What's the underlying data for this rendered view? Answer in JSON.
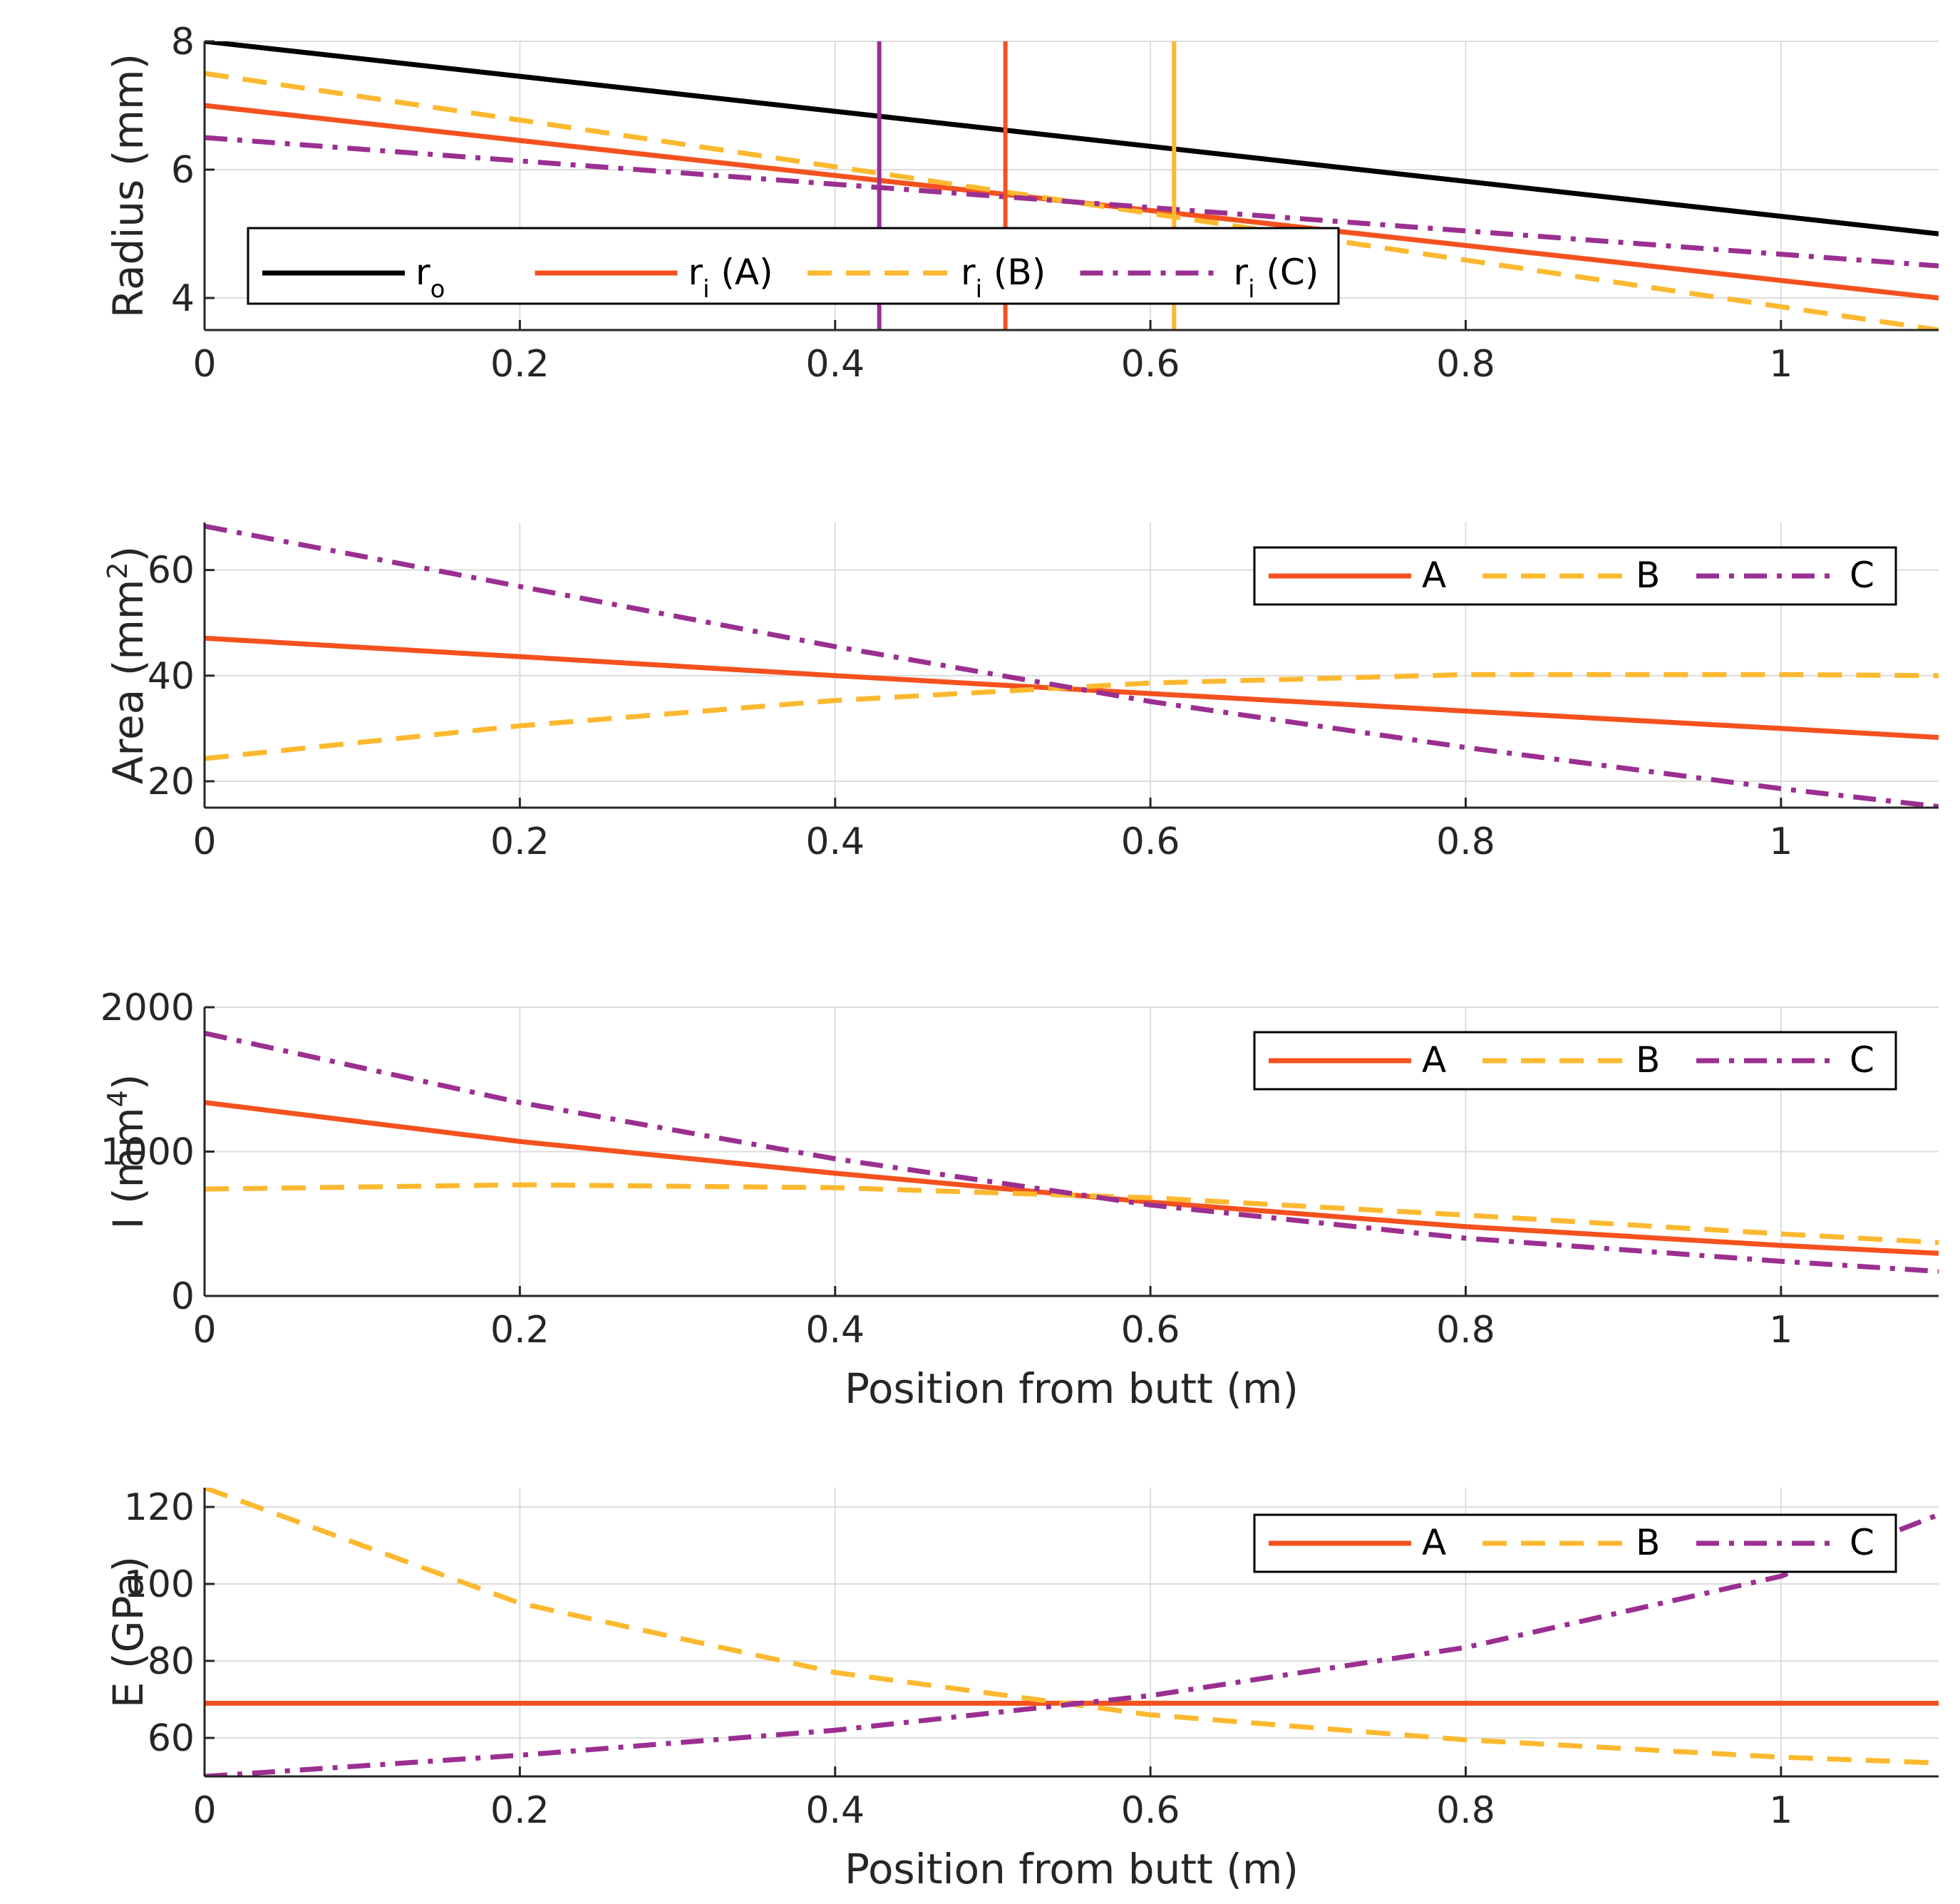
{
  "colors": {
    "ro": "#000000",
    "A": "#f4511e",
    "B": "#fcb92f",
    "C": "#9b2f91",
    "grid": "#dcdcdc",
    "axis": "#262626"
  },
  "chart_data": [
    {
      "type": "line",
      "id": "radius",
      "ylabel": "Radius (mm)",
      "xlabel": "",
      "xlim": [
        0,
        1.1
      ],
      "ylim": [
        3.5,
        8
      ],
      "xticks": [
        0,
        0.2,
        0.4,
        0.6,
        0.8,
        1
      ],
      "xtick_labels": [
        "0",
        "0.2",
        "0.4",
        "0.6",
        "0.8",
        "1"
      ],
      "yticks": [
        4,
        6,
        8
      ],
      "ytick_labels": [
        "4",
        "6",
        "8"
      ],
      "grid": true,
      "legend": {
        "placement": "lower-left",
        "entries": [
          {
            "base": "r",
            "sub": "o",
            "after": ""
          },
          {
            "base": "r",
            "sub": "i",
            "after": " (A)"
          },
          {
            "base": "r",
            "sub": "i",
            "after": " (B)"
          },
          {
            "base": "r",
            "sub": "i",
            "after": " (C)"
          }
        ]
      },
      "series": [
        {
          "name": "ro",
          "color_key": "ro",
          "style": "solid",
          "x": [
            0,
            1.1
          ],
          "y": [
            8.0,
            5.0
          ]
        },
        {
          "name": "ri (A)",
          "color_key": "A",
          "style": "solid",
          "x": [
            0,
            1.1
          ],
          "y": [
            7.0,
            4.0
          ]
        },
        {
          "name": "ri (B)",
          "color_key": "B",
          "style": "dash",
          "x": [
            0,
            1.1
          ],
          "y": [
            7.5,
            3.5
          ]
        },
        {
          "name": "ri (C)",
          "color_key": "C",
          "style": "dashdot",
          "x": [
            0,
            1.1
          ],
          "y": [
            6.5,
            4.5
          ]
        }
      ],
      "vlines": [
        {
          "x": 0.428,
          "color_key": "C"
        },
        {
          "x": 0.508,
          "color_key": "A"
        },
        {
          "x": 0.615,
          "color_key": "B"
        }
      ]
    },
    {
      "type": "line",
      "id": "area",
      "ylabel": "Area (mm",
      "ylabel_sup": "2",
      "ylabel_after": ")",
      "xlabel": "",
      "xlim": [
        0,
        1.1
      ],
      "ylim": [
        15,
        69
      ],
      "xticks": [
        0,
        0.2,
        0.4,
        0.6,
        0.8,
        1
      ],
      "xtick_labels": [
        "0",
        "0.2",
        "0.4",
        "0.6",
        "0.8",
        "1"
      ],
      "yticks": [
        20,
        40,
        60
      ],
      "ytick_labels": [
        "20",
        "40",
        "60"
      ],
      "grid": true,
      "legend": {
        "placement": "top-right",
        "entries": [
          "A",
          "B",
          "C"
        ]
      },
      "series": [
        {
          "name": "A",
          "color_key": "A",
          "style": "solid",
          "x": [
            0,
            0.2,
            0.4,
            0.6,
            0.8,
            1.0,
            1.1
          ],
          "y": [
            47.1,
            43.6,
            40.0,
            36.6,
            33.3,
            30.0,
            28.3
          ]
        },
        {
          "name": "B",
          "color_key": "B",
          "style": "dash",
          "x": [
            0,
            0.2,
            0.4,
            0.6,
            0.8,
            1.0,
            1.1
          ],
          "y": [
            24.3,
            30.5,
            35.3,
            38.6,
            40.2,
            40.2,
            40.0
          ]
        },
        {
          "name": "C",
          "color_key": "C",
          "style": "dashdot",
          "x": [
            0,
            0.2,
            0.4,
            0.6,
            0.8,
            1.0,
            1.1
          ],
          "y": [
            68.3,
            56.9,
            45.5,
            35.1,
            26.4,
            18.6,
            15.2
          ]
        }
      ]
    },
    {
      "type": "line",
      "id": "inertia",
      "ylabel": "I (mm",
      "ylabel_sup": "4",
      "ylabel_after": ")",
      "xlabel": "Position from butt (m)",
      "xlim": [
        0,
        1.1
      ],
      "ylim": [
        0,
        2000
      ],
      "xticks": [
        0,
        0.2,
        0.4,
        0.6,
        0.8,
        1
      ],
      "xtick_labels": [
        "0",
        "0.2",
        "0.4",
        "0.6",
        "0.8",
        "1"
      ],
      "yticks": [
        0,
        1000,
        2000
      ],
      "ytick_labels": [
        "0",
        "1000",
        "2000"
      ],
      "grid": true,
      "legend": {
        "placement": "top-right",
        "entries": [
          "A",
          "B",
          "C"
        ]
      },
      "series": [
        {
          "name": "A",
          "color_key": "A",
          "style": "solid",
          "x": [
            0,
            0.2,
            0.4,
            0.6,
            0.8,
            1.0,
            1.1
          ],
          "y": [
            1340,
            1070,
            850,
            650,
            480,
            350,
            295
          ]
        },
        {
          "name": "B",
          "color_key": "B",
          "style": "dash",
          "x": [
            0,
            0.2,
            0.4,
            0.6,
            0.8,
            1.0,
            1.1
          ],
          "y": [
            740,
            770,
            750,
            680,
            560,
            430,
            370
          ]
        },
        {
          "name": "C",
          "color_key": "C",
          "style": "dashdot",
          "x": [
            0,
            0.2,
            0.4,
            0.6,
            0.8,
            1.0,
            1.1
          ],
          "y": [
            1820,
            1340,
            950,
            630,
            400,
            240,
            170
          ]
        }
      ]
    },
    {
      "type": "line",
      "id": "modulus",
      "ylabel": "E (GPa)",
      "xlabel": "Position from butt (m)",
      "xlim": [
        0,
        1.1
      ],
      "ylim": [
        50,
        125
      ],
      "xticks": [
        0,
        0.2,
        0.4,
        0.6,
        0.8,
        1
      ],
      "xtick_labels": [
        "0",
        "0.2",
        "0.4",
        "0.6",
        "0.8",
        "1"
      ],
      "yticks": [
        60,
        80,
        100,
        120
      ],
      "ytick_labels": [
        "60",
        "80",
        "100",
        "120"
      ],
      "grid": true,
      "legend": {
        "placement": "top-right",
        "entries": [
          "A",
          "B",
          "C"
        ]
      },
      "series": [
        {
          "name": "A",
          "color_key": "A",
          "style": "solid",
          "x": [
            0,
            1.1
          ],
          "y": [
            69,
            69
          ]
        },
        {
          "name": "B",
          "color_key": "B",
          "style": "dash",
          "x": [
            0,
            0.2,
            0.4,
            0.6,
            0.8,
            1.0,
            1.1
          ],
          "y": [
            125,
            95,
            77,
            66,
            59.5,
            55,
            53.5
          ]
        },
        {
          "name": "C",
          "color_key": "C",
          "style": "dashdot",
          "x": [
            0,
            0.2,
            0.4,
            0.6,
            0.8,
            1.0,
            1.1
          ],
          "y": [
            50,
            55.5,
            62,
            71,
            83.5,
            102,
            118
          ]
        }
      ]
    }
  ]
}
